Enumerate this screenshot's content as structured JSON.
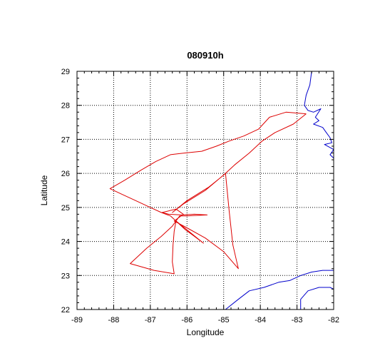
{
  "chart_data": {
    "type": "line",
    "title": "080910h",
    "xlabel": "Longitude",
    "ylabel": "Latitude",
    "xlim": [
      -89,
      -82
    ],
    "ylim": [
      22,
      29
    ],
    "xticks": [
      -89,
      -88,
      -87,
      -86,
      -85,
      -84,
      -83,
      -82
    ],
    "yticks": [
      22,
      23,
      24,
      25,
      26,
      27,
      28,
      29
    ],
    "grid": true,
    "colors": {
      "track": "#dd0000",
      "coastline": "#0000cc",
      "grid": "#000000"
    },
    "series": [
      {
        "role": "flight-track",
        "points": [
          [
            -82.75,
            27.75
          ],
          [
            -83.3,
            27.8
          ],
          [
            -83.75,
            27.65
          ],
          [
            -84.05,
            27.3
          ],
          [
            -84.45,
            27.1
          ],
          [
            -84.85,
            26.95
          ],
          [
            -85.2,
            26.8
          ],
          [
            -85.6,
            26.65
          ],
          [
            -86.05,
            26.6
          ],
          [
            -86.45,
            26.55
          ],
          [
            -86.85,
            26.35
          ],
          [
            -87.25,
            26.1
          ],
          [
            -87.7,
            25.8
          ],
          [
            -88.1,
            25.55
          ],
          [
            -87.8,
            25.4
          ],
          [
            -87.4,
            25.2
          ],
          [
            -87.0,
            25.0
          ],
          [
            -86.7,
            24.85
          ],
          [
            -86.45,
            24.75
          ],
          [
            -86.25,
            24.55
          ],
          [
            -86.05,
            24.35
          ],
          [
            -85.8,
            24.15
          ],
          [
            -85.55,
            23.95
          ],
          [
            -86.3,
            24.6
          ],
          [
            -86.35,
            24.3
          ],
          [
            -86.38,
            23.9
          ],
          [
            -86.4,
            23.4
          ],
          [
            -86.35,
            23.05
          ],
          [
            -86.9,
            23.15
          ],
          [
            -87.55,
            23.35
          ],
          [
            -87.1,
            23.8
          ],
          [
            -86.7,
            24.15
          ],
          [
            -86.4,
            24.45
          ],
          [
            -86.2,
            24.75
          ],
          [
            -86.0,
            24.75
          ],
          [
            -85.45,
            24.78
          ],
          [
            -85.8,
            24.8
          ],
          [
            -86.15,
            24.78
          ],
          [
            -86.5,
            24.8
          ],
          [
            -86.68,
            24.85
          ],
          [
            -86.3,
            24.95
          ],
          [
            -86.1,
            24.8
          ],
          [
            -86.35,
            24.6
          ],
          [
            -86.0,
            24.4
          ],
          [
            -85.5,
            24.1
          ],
          [
            -85.0,
            23.7
          ],
          [
            -84.6,
            23.2
          ],
          [
            -84.75,
            23.9
          ],
          [
            -84.85,
            24.9
          ],
          [
            -84.95,
            26.0
          ],
          [
            -85.5,
            25.5
          ],
          [
            -86.1,
            25.1
          ],
          [
            -86.4,
            24.85
          ],
          [
            -86.0,
            25.2
          ],
          [
            -85.4,
            25.6
          ],
          [
            -85.0,
            25.95
          ],
          [
            -84.7,
            26.25
          ],
          [
            -84.3,
            26.6
          ],
          [
            -83.95,
            26.95
          ],
          [
            -83.6,
            27.2
          ],
          [
            -83.1,
            27.45
          ],
          [
            -82.75,
            27.75
          ]
        ]
      },
      {
        "role": "coastline-florida",
        "points": [
          [
            -82.6,
            29.0
          ],
          [
            -82.65,
            28.6
          ],
          [
            -82.75,
            28.3
          ],
          [
            -82.8,
            28.0
          ],
          [
            -82.7,
            27.85
          ],
          [
            -82.55,
            27.8
          ],
          [
            -82.35,
            27.9
          ],
          [
            -82.5,
            27.65
          ],
          [
            -82.4,
            27.55
          ],
          [
            -82.55,
            27.45
          ],
          [
            -82.3,
            27.35
          ],
          [
            -82.2,
            27.2
          ],
          [
            -82.1,
            27.05
          ],
          [
            -82.05,
            26.9
          ],
          [
            -82.25,
            26.85
          ],
          [
            -82.0,
            26.7
          ],
          [
            -82.1,
            26.55
          ],
          [
            -82.0,
            26.45
          ]
        ]
      },
      {
        "role": "coastline-cuba",
        "points": [
          [
            -84.95,
            22.0
          ],
          [
            -84.6,
            22.3
          ],
          [
            -84.3,
            22.55
          ],
          [
            -83.9,
            22.65
          ],
          [
            -83.5,
            22.8
          ],
          [
            -83.2,
            22.85
          ],
          [
            -82.9,
            23.0
          ],
          [
            -82.6,
            23.1
          ],
          [
            -82.3,
            23.15
          ],
          [
            -82.0,
            23.15
          ]
        ]
      },
      {
        "role": "coastline-isle-of-youth",
        "points": [
          [
            -82.9,
            22.0
          ],
          [
            -82.9,
            22.3
          ],
          [
            -82.7,
            22.55
          ],
          [
            -82.4,
            22.65
          ],
          [
            -82.1,
            22.65
          ],
          [
            -82.0,
            22.6
          ]
        ]
      }
    ]
  }
}
